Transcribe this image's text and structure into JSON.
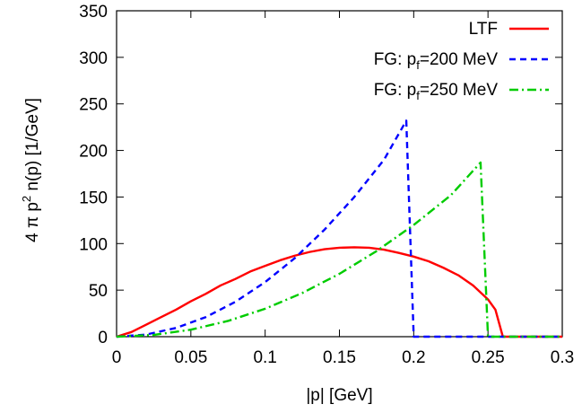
{
  "chart_data": {
    "type": "line",
    "xlabel": "|p| [GeV]",
    "ylabel": "4 π p",
    "ylabel_sup": "2",
    "ylabel_tail": " n(p) [1/GeV]",
    "xlim": [
      0,
      0.3
    ],
    "ylim": [
      0,
      350
    ],
    "x_ticks": [
      0,
      0.05,
      0.1,
      0.15,
      0.2,
      0.25,
      0.3
    ],
    "x_tick_labels": [
      "0",
      "0.05",
      "0.1",
      "0.15",
      "0.2",
      "0.25",
      "0.3"
    ],
    "y_ticks": [
      0,
      50,
      100,
      150,
      200,
      250,
      300,
      350
    ],
    "y_tick_labels": [
      "0",
      "50",
      "100",
      "150",
      "200",
      "250",
      "300",
      "350"
    ],
    "grid": false,
    "legend_position": "top-right",
    "series": [
      {
        "name": "LTF",
        "legend_main": "LTF",
        "legend_sub": "",
        "legend_tail": "",
        "color": "#ff0000",
        "dash": "solid",
        "x": [
          0,
          0.01,
          0.02,
          0.03,
          0.04,
          0.05,
          0.06,
          0.07,
          0.08,
          0.09,
          0.1,
          0.11,
          0.12,
          0.13,
          0.14,
          0.15,
          0.16,
          0.17,
          0.18,
          0.19,
          0.2,
          0.21,
          0.22,
          0.23,
          0.24,
          0.25,
          0.255,
          0.26,
          0.3
        ],
        "y": [
          0,
          5,
          13,
          21,
          29,
          38,
          46,
          55,
          62,
          70,
          76,
          82,
          87,
          91,
          94,
          95.5,
          96,
          95.5,
          93.5,
          90,
          86,
          81,
          74,
          66,
          55,
          40,
          29,
          0,
          0
        ]
      },
      {
        "name": "FG: p_f=200 MeV",
        "legend_main": "FG: p",
        "legend_sub": "f",
        "legend_tail": "=200 MeV",
        "color": "#0000ff",
        "dash": "dashed",
        "x": [
          0,
          0.02,
          0.04,
          0.06,
          0.08,
          0.1,
          0.12,
          0.14,
          0.16,
          0.18,
          0.195,
          0.2,
          0.3
        ],
        "y": [
          0,
          2.3,
          9.4,
          21,
          37.5,
          58.6,
          84.4,
          115,
          150,
          190,
          232,
          0,
          0
        ]
      },
      {
        "name": "FG: p_f=250 MeV",
        "legend_main": "FG: p",
        "legend_sub": "f",
        "legend_tail": "=250 MeV",
        "color": "#00cc00",
        "dash": "dashdot",
        "x": [
          0,
          0.025,
          0.05,
          0.075,
          0.1,
          0.125,
          0.15,
          0.175,
          0.2,
          0.225,
          0.245,
          0.25,
          0.3
        ],
        "y": [
          0,
          1.9,
          7.5,
          16.9,
          30,
          46.9,
          67.5,
          91.9,
          120,
          151.9,
          187,
          0,
          0
        ]
      }
    ]
  }
}
